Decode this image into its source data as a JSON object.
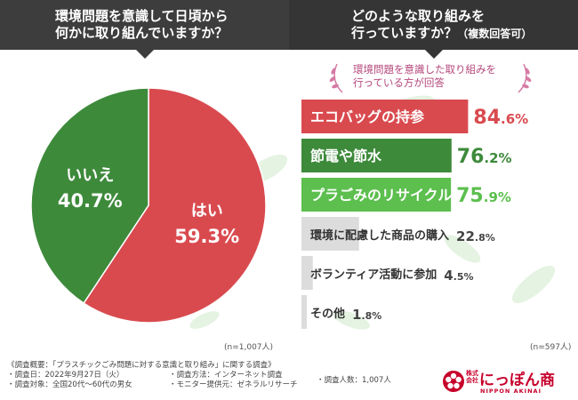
{
  "header": {
    "left_line1": "環境問題を意識して日頃から",
    "left_line2": "何かに取り組んでいますか？",
    "right_line1": "どのような取り組みを",
    "right_line2_main": "行っていますか？",
    "right_line2_small": "（複数回答可）"
  },
  "note": {
    "line1": "環境問題を意識した取り組みを",
    "line2": "行っている方が回答"
  },
  "chart_data": [
    {
      "type": "pie",
      "slices": [
        {
          "label": "はい",
          "value": 59.3,
          "value_text": "59.3%",
          "color": "#d94a4f"
        },
        {
          "label": "いいえ",
          "value": 40.7,
          "value_text": "40.7%",
          "color": "#3d8a3b"
        }
      ],
      "n_label": "(n=1,007人)"
    },
    {
      "type": "bar",
      "orientation": "horizontal",
      "categories": [
        "エコバッグの持参",
        "節電や節水",
        "プラごみのリサイクル",
        "環境に配慮した商品の購入",
        "ボランティア活動に参加",
        "その他"
      ],
      "values": [
        84.6,
        76.2,
        75.9,
        22.8,
        4.5,
        1.8
      ],
      "value_int": [
        "84",
        "76",
        "75",
        "22",
        "4",
        "1"
      ],
      "value_dec": [
        ".6%",
        ".2%",
        ".9%",
        ".8%",
        ".5%",
        ".8%"
      ],
      "colors": [
        "#d94a4f",
        "#3d8a3b",
        "#5cbf4e",
        "#dcdcdc",
        "#dcdcdc",
        "#dcdcdc"
      ],
      "value_colors": [
        "#d94a4f",
        "#3d8a3b",
        "#5cbf4e",
        "#444444",
        "#444444",
        "#444444"
      ],
      "xlim": [
        0,
        100
      ],
      "n_label": "(n=597人)"
    }
  ],
  "footer": {
    "title": "《調査概要：「プラスチックごみ問題に対する意識と取り組み」に関する調査》",
    "date": "・調査日：2022年9月27日（火）",
    "target": "・調査対象：全国20代～60代の男女",
    "method": "・調査方法：インターネット調査",
    "monitor": "・モニター提供元：ゼネラルリサーチ",
    "count": "・調査人数：1,007人"
  },
  "logo": {
    "kabushiki": "株式",
    "kaisha": "会社",
    "name": "にっぽん商",
    "english": "NIPPON AKINAI"
  }
}
